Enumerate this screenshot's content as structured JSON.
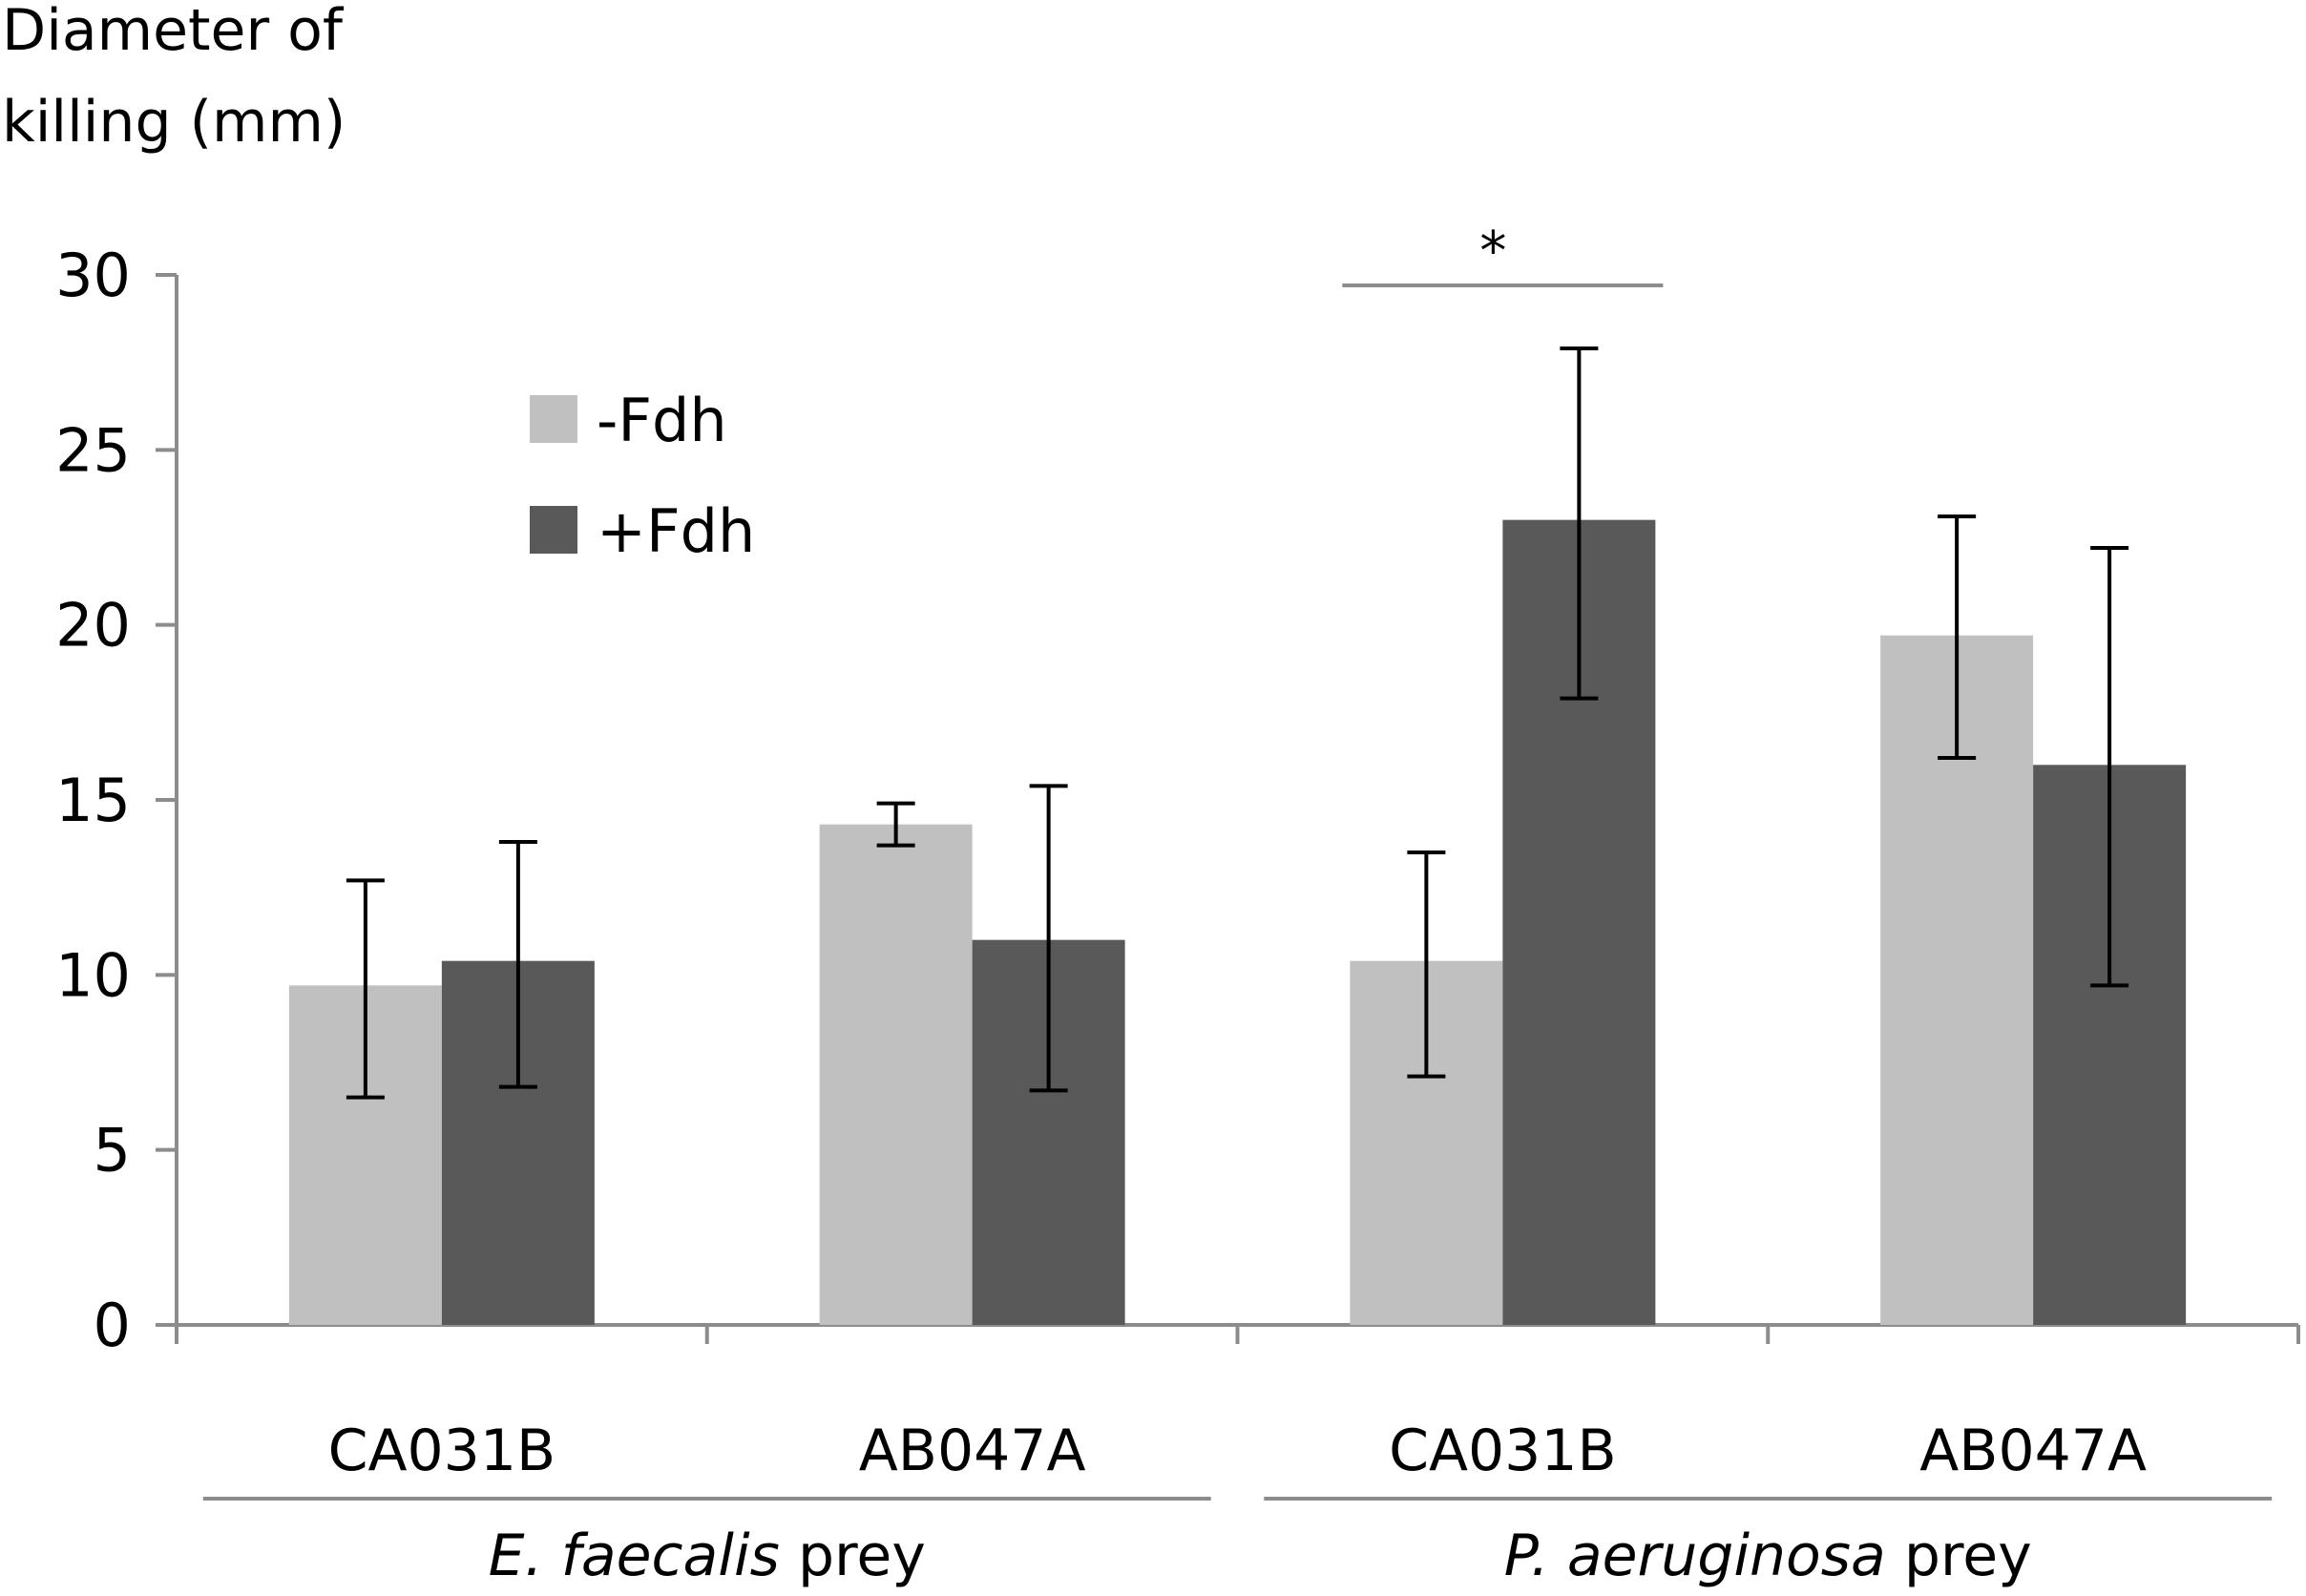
{
  "chart_data": {
    "type": "bar",
    "ylabel_lines": [
      "Diameter of",
      "killing (mm)"
    ],
    "ylim": [
      0,
      30
    ],
    "yticks": [
      0,
      5,
      10,
      15,
      20,
      25,
      30
    ],
    "categories": [
      "CA031B",
      "AB047A",
      "CA031B",
      "AB047A"
    ],
    "groups": [
      {
        "prefix": "E. faecalis",
        "suffix": " prey",
        "categories": [
          0,
          1
        ]
      },
      {
        "prefix": "P. aeruginosa",
        "suffix": " prey",
        "categories": [
          2,
          3
        ]
      }
    ],
    "series": [
      {
        "name": "-Fdh",
        "color": "#c0c0c0",
        "values": [
          9.7,
          14.3,
          10.4,
          19.7
        ],
        "err_low": [
          6.5,
          13.7,
          7.1,
          16.2
        ],
        "err_high": [
          12.7,
          14.9,
          13.5,
          23.1
        ]
      },
      {
        "name": "+Fdh",
        "color": "#595959",
        "values": [
          10.4,
          11.0,
          23.0,
          16.0
        ],
        "err_low": [
          6.8,
          6.7,
          17.9,
          9.7
        ],
        "err_high": [
          13.8,
          15.4,
          27.9,
          22.2
        ]
      }
    ],
    "annotations": [
      {
        "text": "*",
        "category": 2
      }
    ],
    "legend_position": "top-left inside"
  }
}
